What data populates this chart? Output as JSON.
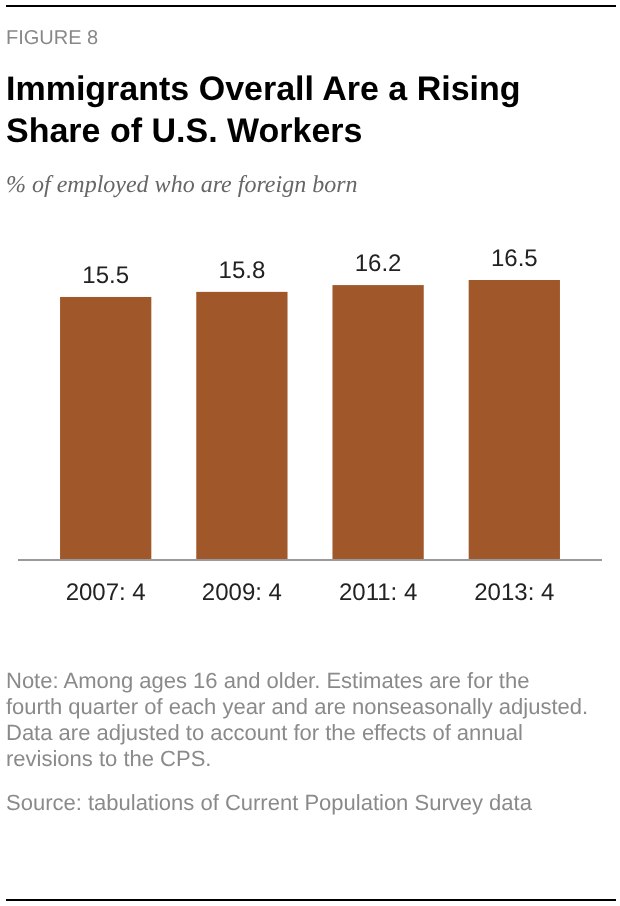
{
  "chart_data": {
    "type": "bar",
    "title": "Immigrants Overall Are a Rising Share of U.S. Workers",
    "subtitle": "% of employed who are foreign born",
    "categories": [
      "2007: 4",
      "2009: 4",
      "2011: 4",
      "2013: 4"
    ],
    "values": [
      15.5,
      15.8,
      16.2,
      16.5
    ],
    "color": "#a0572a",
    "data_labels": true,
    "annotations": [
      "FIGURE 8",
      "Note: Among ages 16 and older. Estimates are for the fourth quarter of each year and are nonseasonally adjusted. Data are adjusted to account for the effects of annual revisions to the CPS.",
      "Source: tabulations of Current Population Survey data"
    ]
  }
}
